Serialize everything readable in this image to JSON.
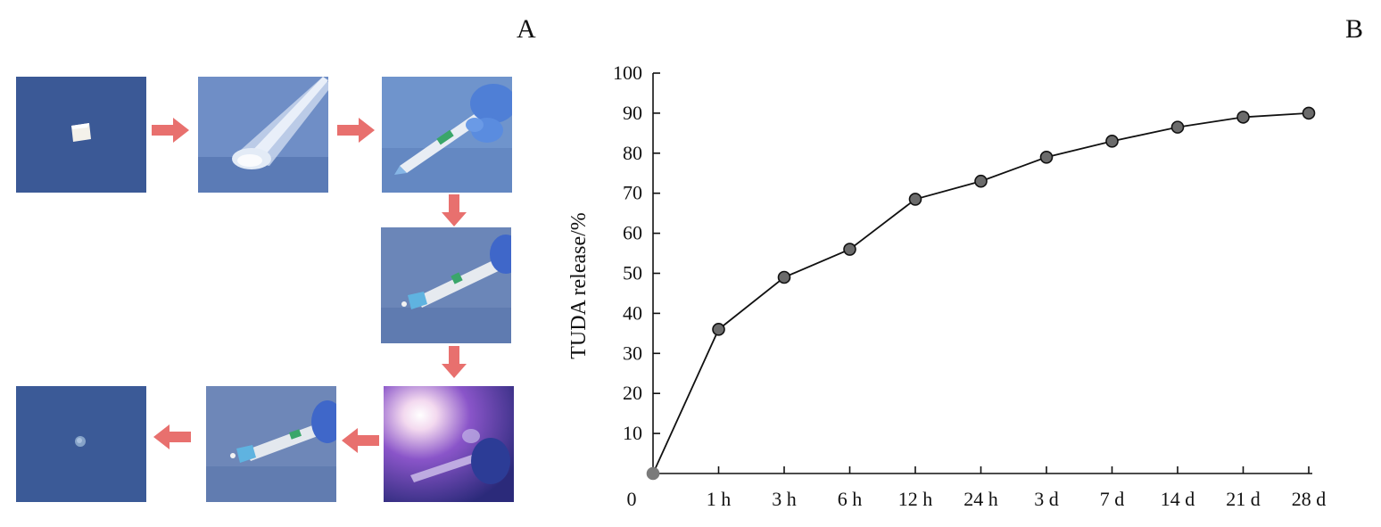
{
  "panel_a_label": "A",
  "panel_b_label": "B",
  "photos": [
    {
      "id": "photo-1",
      "subject": "solid-sample"
    },
    {
      "id": "photo-2",
      "subject": "glass-tube-hydrogel"
    },
    {
      "id": "photo-3",
      "subject": "syringe-gloved-hand"
    },
    {
      "id": "photo-4",
      "subject": "syringe-injection"
    },
    {
      "id": "photo-5",
      "subject": "light-irradiation"
    },
    {
      "id": "photo-6",
      "subject": "syringe-injection"
    },
    {
      "id": "photo-7",
      "subject": "cured-droplet"
    }
  ],
  "colors": {
    "photo_background": "#3d5c9a",
    "arrow": "#e8706e",
    "marker": "#6b6b6b"
  },
  "chart_data": {
    "type": "line",
    "title": "",
    "xlabel": "",
    "ylabel": "TUDA release/%",
    "origin_label": "0",
    "categories": [
      "",
      "1 h",
      "3 h",
      "6 h",
      "12 h",
      "24 h",
      "3 d",
      "7 d",
      "14 d",
      "21 d",
      "28 d"
    ],
    "series": [
      {
        "values": [
          0,
          36,
          49,
          56,
          68.5,
          73,
          79,
          83,
          86.5,
          89,
          90
        ]
      }
    ],
    "ylim": [
      0,
      100
    ],
    "yticks": [
      10,
      20,
      30,
      40,
      50,
      60,
      70,
      80,
      90,
      100
    ],
    "grid": false,
    "legend": "none"
  }
}
